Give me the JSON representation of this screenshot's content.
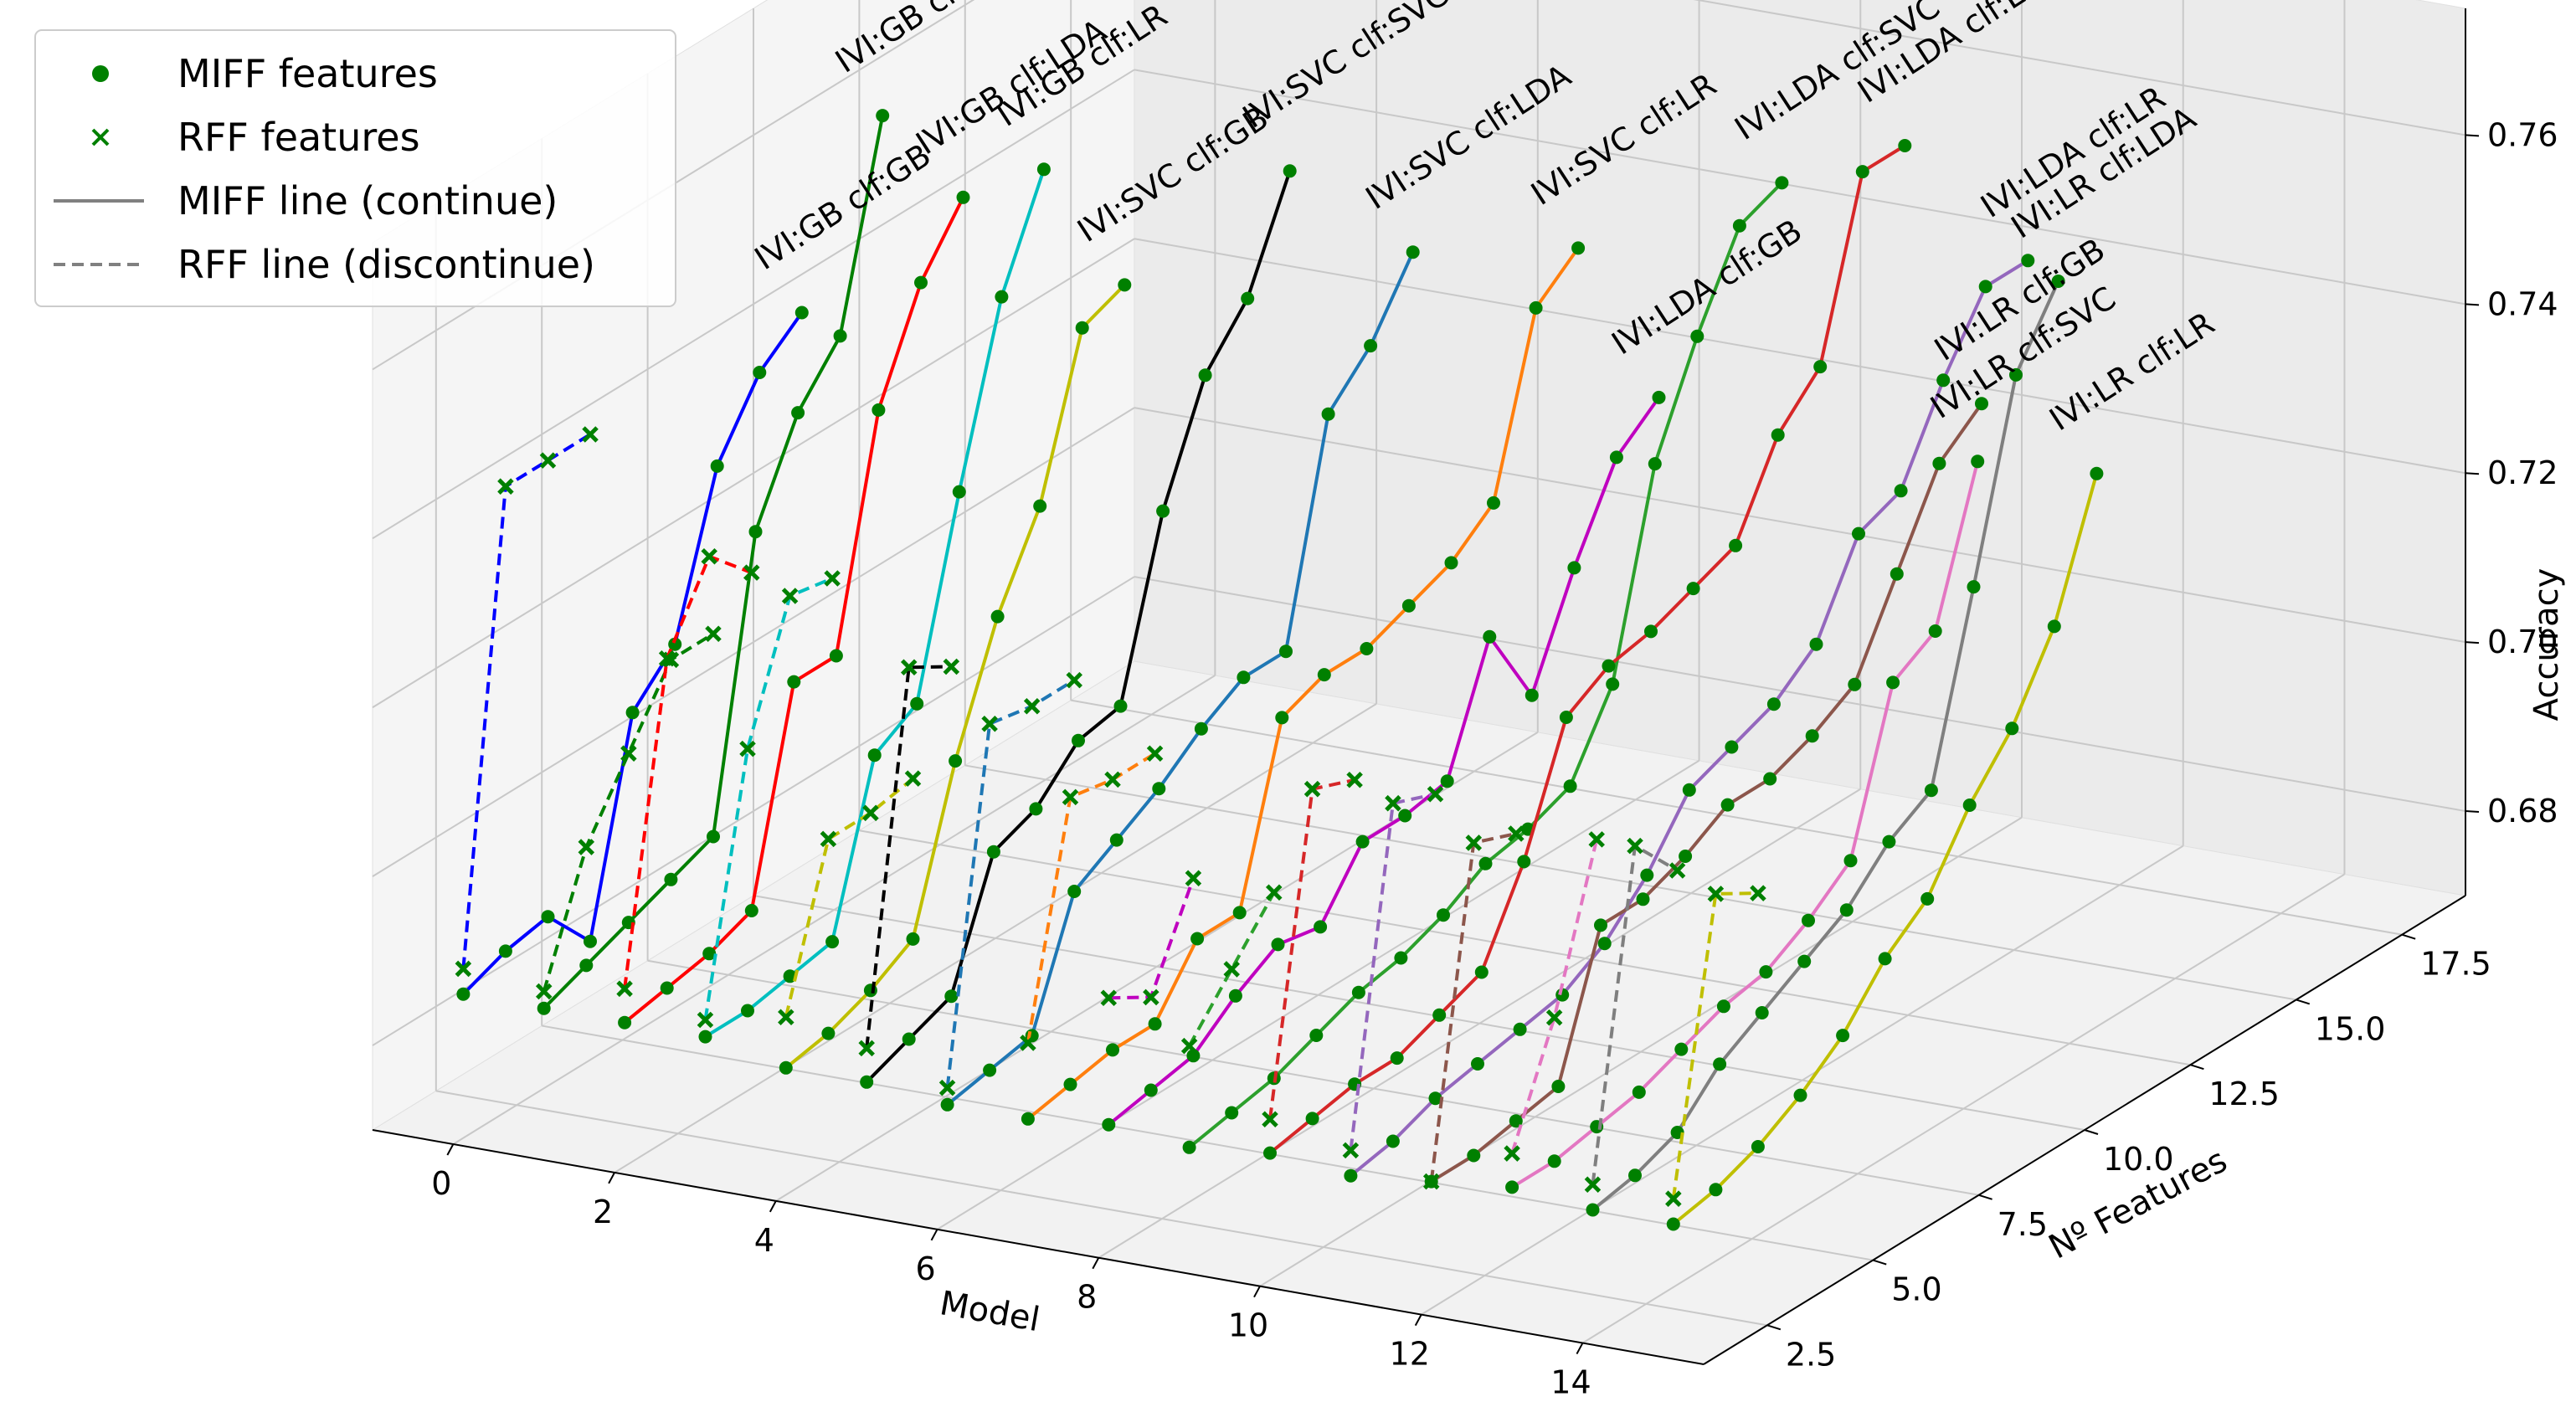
{
  "chart_data": {
    "type": "line3d",
    "title": "",
    "xlabel": "Model",
    "ylabel": "Nº Features",
    "zlabel": "Accuracy",
    "xlim": [
      -1,
      15.5
    ],
    "ylim": [
      1,
      19
    ],
    "zlim": [
      0.67,
      0.775
    ],
    "xticks": [
      0,
      2,
      4,
      6,
      8,
      10,
      12,
      14
    ],
    "yticks": [
      2.5,
      5.0,
      7.5,
      10.0,
      12.5,
      15.0,
      17.5
    ],
    "zticks": [
      0.68,
      0.7,
      0.72,
      0.74,
      0.76
    ],
    "xtick_labels": [
      "0",
      "2",
      "4",
      "6",
      "8",
      "10",
      "12",
      "14"
    ],
    "ytick_labels": [
      "2.5",
      "5.0",
      "7.5",
      "10.0",
      "12.5",
      "15.0",
      "17.5"
    ],
    "ztick_labels": [
      "0.68",
      "0.70",
      "0.72",
      "0.74",
      "0.76"
    ],
    "legend": {
      "position": "top-left",
      "entries": [
        "MIFF features",
        "RFF features",
        "MIFF line (continue)",
        "RFF line (discontinue)"
      ]
    },
    "marker_colors": {
      "miff": "#008000",
      "rff": "#008000",
      "legend_line": "#808080"
    },
    "series": [
      {
        "name": "IVI:GB clf:GB",
        "model": 0,
        "color": "#0000ff",
        "miff": [
          0.684,
          0.686,
          0.687,
          0.681,
          0.705,
          0.71,
          0.728,
          0.736,
          0.74
        ],
        "rff": [
          0.687,
          0.741,
          0.741,
          0.741
        ]
      },
      {
        "name": "IVI:GB clf:SVC",
        "model": 1,
        "color": "#008000",
        "miff": [
          0.684,
          0.686,
          0.688,
          0.69,
          0.692,
          0.725,
          0.736,
          0.742,
          0.765
        ],
        "rff": [
          0.686,
          0.7,
          0.708,
          0.716,
          0.716
        ]
      },
      {
        "name": "IVI:GB clf:LDA",
        "model": 2,
        "color": "#ff0000",
        "miff": [
          0.684,
          0.685,
          0.686,
          0.688,
          0.712,
          0.712,
          0.738,
          0.75,
          0.757
        ],
        "rff": [
          0.688,
          0.724,
          0.733,
          0.728
        ]
      },
      {
        "name": "IVI:GB clf:LR",
        "model": 3,
        "color": "#00bfbf",
        "miff": [
          0.684,
          0.684,
          0.685,
          0.686,
          0.705,
          0.708,
          0.73,
          0.75,
          0.762
        ],
        "rff": [
          0.686,
          0.715,
          0.73,
          0.729
        ]
      },
      {
        "name": "IVI:SVC clf:GB",
        "model": 4,
        "color": "#bfbf00",
        "miff": [
          0.682,
          0.683,
          0.685,
          0.688,
          0.706,
          0.72,
          0.73,
          0.748,
          0.75
        ],
        "rff": [
          0.688,
          0.706,
          0.706,
          0.707
        ]
      },
      {
        "name": "IVI:SVC clf:SVC",
        "model": 5,
        "color": "#000000",
        "miff": [
          0.682,
          0.684,
          0.686,
          0.7,
          0.702,
          0.707,
          0.708,
          0.728,
          0.741,
          0.747,
          0.759
        ],
        "rff": [
          0.686,
          0.728,
          0.725
        ]
      },
      {
        "name": "IVI:SVC clf:LDA",
        "model": 6,
        "color": "#1f77b4",
        "miff": [
          0.681,
          0.682,
          0.683,
          0.697,
          0.7,
          0.703,
          0.707,
          0.71,
          0.71,
          0.735,
          0.74,
          0.748
        ],
        "rff": [
          0.683,
          0.723,
          0.722,
          0.722
        ]
      },
      {
        "name": "IVI:SVC clf:LR",
        "model": 7,
        "color": "#ff7f0e",
        "miff": [
          0.681,
          0.682,
          0.683,
          0.683,
          0.69,
          0.69,
          0.71,
          0.712,
          0.712,
          0.714,
          0.716,
          0.72,
          0.74,
          0.744
        ],
        "rff": [
          0.69,
          0.716,
          0.715,
          0.715
        ]
      },
      {
        "name": "IVI:LDA clf:GB",
        "model": 8,
        "color": "#bf00bf",
        "miff": [
          0.682,
          0.683,
          0.684,
          0.688,
          0.691,
          0.69,
          0.697,
          0.697,
          0.698,
          0.712,
          0.702,
          0.714,
          0.724,
          0.728
        ],
        "rff": [
          0.697,
          0.694,
          0.705
        ]
      },
      {
        "name": "IVI:LDA clf:SVC",
        "model": 9,
        "color": "#2ca02c",
        "miff": [
          0.681,
          0.682,
          0.683,
          0.685,
          0.687,
          0.688,
          0.69,
          0.693,
          0.694,
          0.696,
          0.705,
          0.728,
          0.74,
          0.75,
          0.752
        ],
        "rff": [
          0.693,
          0.699,
          0.705
        ]
      },
      {
        "name": "IVI:LDA clf:LDA",
        "model": 10,
        "color": "#d62728",
        "miff": [
          0.682,
          0.683,
          0.684,
          0.684,
          0.686,
          0.688,
          0.698,
          0.712,
          0.715,
          0.716,
          0.718,
          0.72,
          0.73,
          0.735,
          0.755,
          0.755
        ],
        "rff": [
          0.686,
          0.722,
          0.72
        ]
      },
      {
        "name": "IVI:LDA clf:LR",
        "model": 11,
        "color": "#9467bd",
        "miff": [
          0.681,
          0.682,
          0.684,
          0.685,
          0.686,
          0.687,
          0.69,
          0.695,
          0.702,
          0.704,
          0.706,
          0.71,
          0.72,
          0.722,
          0.732,
          0.74,
          0.74
        ],
        "rff": [
          0.684,
          0.722,
          0.72
        ]
      },
      {
        "name": "IVI:LR clf:GB",
        "model": 12,
        "color": "#8c564b",
        "miff": [
          0.682,
          0.682,
          0.683,
          0.684,
          0.7,
          0.7,
          0.702,
          0.705,
          0.705,
          0.707,
          0.71,
          0.72,
          0.73,
          0.734
        ],
        "rff": [
          0.682,
          0.719,
          0.717
        ]
      },
      {
        "name": "IVI:LR clf:SVC",
        "model": 13,
        "color": "#e377c2",
        "miff": [
          0.683,
          0.683,
          0.684,
          0.685,
          0.687,
          0.689,
          0.69,
          0.693,
          0.697,
          0.715,
          0.718,
          0.735
        ],
        "rff": [
          0.687,
          0.7,
          0.718
        ]
      },
      {
        "name": "IVI:LR clf:LDA",
        "model": 14,
        "color": "#7f7f7f",
        "miff": [
          0.682,
          0.683,
          0.685,
          0.69,
          0.693,
          0.696,
          0.699,
          0.704,
          0.707,
          0.728,
          0.75,
          0.758
        ],
        "rff": [
          0.685,
          0.722,
          0.716
        ]
      },
      {
        "name": "IVI:LR clf:LR",
        "model": 15,
        "color": "#bfbf00",
        "miff": [
          0.682,
          0.683,
          0.685,
          0.688,
          0.692,
          0.698,
          0.702,
          0.71,
          0.716,
          0.725,
          0.74
        ],
        "rff": [
          0.685,
          0.718,
          0.715
        ]
      }
    ]
  }
}
